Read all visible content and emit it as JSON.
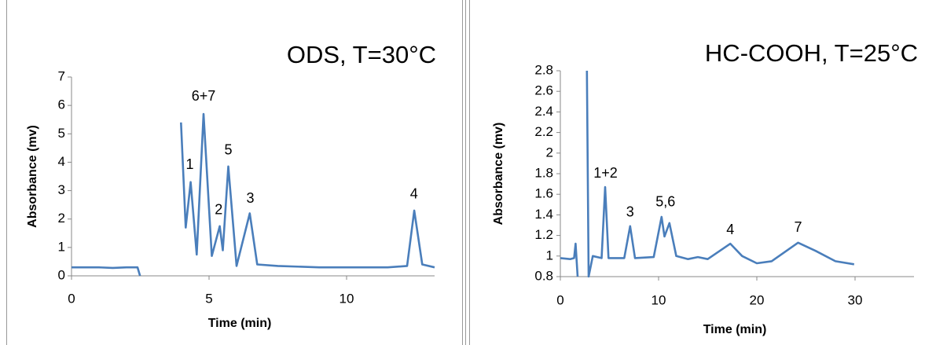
{
  "chart_data": [
    {
      "type": "line",
      "title": "ODS, T=30°C",
      "x_label": "Time (min)",
      "y_label": "Absorbance (mv)",
      "xlim": [
        0,
        13.2
      ],
      "xticks": [
        0,
        5,
        10
      ],
      "ylim": [
        0,
        7
      ],
      "yticks": [
        0,
        1,
        2,
        3,
        4,
        5,
        6,
        7
      ],
      "x": [
        0,
        0.5,
        1,
        1.5,
        2,
        2.4,
        2.49,
        3.84,
        3.98,
        4.15,
        4.33,
        4.55,
        4.8,
        5.1,
        5.39,
        5.5,
        5.7,
        6.0,
        6.48,
        6.75,
        7.5,
        9,
        11.5,
        12.2,
        12.46,
        12.75,
        13.2
      ],
      "values": [
        0.3,
        0.3,
        0.3,
        0.28,
        0.3,
        0.3,
        0,
        null,
        5.4,
        1.7,
        3.3,
        0.75,
        5.7,
        0.7,
        1.75,
        0.9,
        3.85,
        0.35,
        2.2,
        0.4,
        0.35,
        0.3,
        0.3,
        0.35,
        2.3,
        0.4,
        0.3
      ],
      "color": "#4a7ebb",
      "annotations": [
        "1",
        "6+7",
        "2",
        "5",
        "3",
        "4"
      ]
    },
    {
      "type": "line",
      "title": "HC-COOH, T=25°C",
      "x_label": "Time (min)",
      "y_label": "Absorbance (mv)",
      "xlim": [
        0,
        36
      ],
      "xticks": [
        0,
        10,
        20,
        30
      ],
      "ylim": [
        0.8,
        2.8
      ],
      "yticks": [
        0.8,
        1,
        1.2,
        1.4,
        1.6,
        1.8,
        2,
        2.2,
        2.4,
        2.6,
        2.8
      ],
      "x": [
        0,
        1,
        1.4,
        1.55,
        1.76,
        2.56,
        2.7,
        2.88,
        3.3,
        4.2,
        4.56,
        4.9,
        6.5,
        7.1,
        7.6,
        9.5,
        10.3,
        10.6,
        11.1,
        11.8,
        13,
        14,
        15,
        17.3,
        18.5,
        20,
        21.5,
        24.2,
        26,
        28,
        29.9
      ],
      "values": [
        0.98,
        0.97,
        0.98,
        1.12,
        0.8,
        null,
        2.8,
        0.8,
        1.0,
        0.98,
        1.67,
        0.98,
        0.98,
        1.29,
        0.98,
        0.99,
        1.38,
        1.19,
        1.32,
        1.0,
        0.97,
        0.99,
        0.97,
        1.12,
        1.0,
        0.93,
        0.95,
        1.13,
        1.05,
        0.95,
        0.92
      ],
      "color": "#4a7ebb",
      "annotations": [
        "1+2",
        "3",
        "5,6",
        "4",
        "7"
      ]
    }
  ]
}
